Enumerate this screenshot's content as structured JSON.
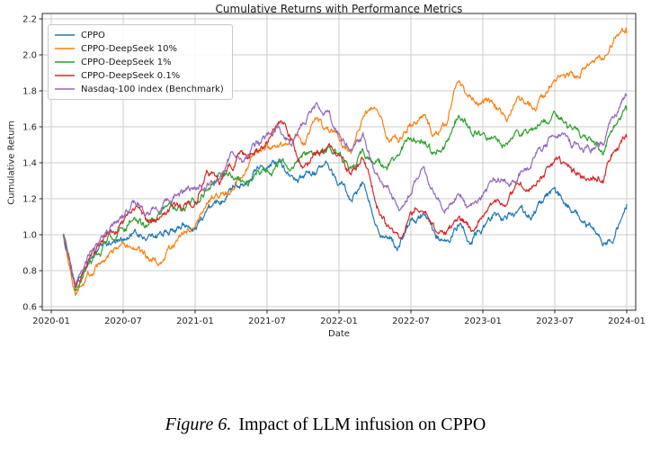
{
  "figure": {
    "caption_label": "Figure 6.",
    "caption_text": "Impact of LLM infusion on CPPO"
  },
  "chart_data": {
    "type": "line",
    "title": "Cumulative Returns with Performance Metrics",
    "xlabel": "Date",
    "ylabel": "Cumulative Return",
    "ylim": [
      0.6,
      2.2
    ],
    "yticks": [
      0.6,
      0.8,
      1.0,
      1.2,
      1.4,
      1.6,
      1.8,
      2.0,
      2.2
    ],
    "xticks": [
      "2020-01",
      "2020-07",
      "2021-01",
      "2021-07",
      "2022-01",
      "2022-07",
      "2023-01",
      "2023-07",
      "2024-01"
    ],
    "grid": true,
    "legend_position": "upper left",
    "x": [
      "2020-02",
      "2020-03",
      "2020-04",
      "2020-05",
      "2020-06",
      "2020-07",
      "2020-08",
      "2020-09",
      "2020-10",
      "2020-11",
      "2020-12",
      "2021-01",
      "2021-02",
      "2021-03",
      "2021-04",
      "2021-05",
      "2021-06",
      "2021-07",
      "2021-08",
      "2021-09",
      "2021-10",
      "2021-11",
      "2021-12",
      "2022-01",
      "2022-02",
      "2022-03",
      "2022-04",
      "2022-05",
      "2022-06",
      "2022-07",
      "2022-08",
      "2022-09",
      "2022-10",
      "2022-11",
      "2022-12",
      "2023-01",
      "2023-02",
      "2023-03",
      "2023-04",
      "2023-05",
      "2023-06",
      "2023-07",
      "2023-08",
      "2023-09",
      "2023-10",
      "2023-11",
      "2023-12",
      "2024-01"
    ],
    "series": [
      {
        "name": "CPPO",
        "color": "#1f77b4",
        "values": [
          1.0,
          0.7,
          0.84,
          0.93,
          0.96,
          0.99,
          1.0,
          0.97,
          1.0,
          1.02,
          1.04,
          1.05,
          1.13,
          1.16,
          1.28,
          1.3,
          1.36,
          1.4,
          1.43,
          1.32,
          1.31,
          1.35,
          1.37,
          1.28,
          1.21,
          1.28,
          1.1,
          0.98,
          0.93,
          1.06,
          1.1,
          0.97,
          0.97,
          1.05,
          0.98,
          1.05,
          1.12,
          1.08,
          1.14,
          1.11,
          1.19,
          1.24,
          1.17,
          1.1,
          1.02,
          0.96,
          1.0,
          1.17
        ]
      },
      {
        "name": "CPPO-DeepSeek 10%",
        "color": "#ff7f0e",
        "values": [
          1.0,
          0.65,
          0.76,
          0.82,
          0.88,
          0.92,
          0.94,
          0.87,
          0.85,
          0.93,
          1.0,
          1.04,
          1.17,
          1.22,
          1.26,
          1.33,
          1.45,
          1.47,
          1.5,
          1.55,
          1.51,
          1.63,
          1.57,
          1.55,
          1.45,
          1.66,
          1.72,
          1.55,
          1.52,
          1.62,
          1.66,
          1.55,
          1.62,
          1.88,
          1.76,
          1.76,
          1.71,
          1.63,
          1.78,
          1.75,
          1.73,
          1.86,
          1.9,
          1.87,
          1.98,
          1.96,
          2.06,
          2.12
        ]
      },
      {
        "name": "CPPO-DeepSeek 1%",
        "color": "#2ca02c",
        "values": [
          1.0,
          0.68,
          0.8,
          0.9,
          0.99,
          1.05,
          1.09,
          1.04,
          1.11,
          1.13,
          1.16,
          1.19,
          1.27,
          1.33,
          1.34,
          1.3,
          1.32,
          1.33,
          1.4,
          1.38,
          1.43,
          1.47,
          1.48,
          1.45,
          1.37,
          1.45,
          1.4,
          1.38,
          1.43,
          1.56,
          1.5,
          1.46,
          1.52,
          1.65,
          1.58,
          1.55,
          1.52,
          1.5,
          1.55,
          1.6,
          1.67,
          1.66,
          1.6,
          1.56,
          1.52,
          1.46,
          1.6,
          1.69
        ]
      },
      {
        "name": "CPPO-DeepSeek 0.1%",
        "color": "#d62728",
        "values": [
          1.0,
          0.7,
          0.84,
          0.94,
          1.02,
          1.07,
          1.14,
          1.07,
          1.09,
          1.15,
          1.17,
          1.19,
          1.35,
          1.28,
          1.38,
          1.43,
          1.46,
          1.5,
          1.63,
          1.52,
          1.38,
          1.44,
          1.48,
          1.46,
          1.33,
          1.43,
          1.21,
          1.05,
          0.97,
          1.12,
          1.17,
          1.04,
          1.03,
          1.1,
          1.03,
          1.1,
          1.19,
          1.21,
          1.28,
          1.26,
          1.34,
          1.4,
          1.36,
          1.34,
          1.32,
          1.3,
          1.47,
          1.54
        ]
      },
      {
        "name": "Nasdaq-100 index (Benchmark)",
        "color": "#9467bd",
        "values": [
          1.0,
          0.72,
          0.86,
          0.95,
          1.04,
          1.09,
          1.17,
          1.13,
          1.16,
          1.21,
          1.24,
          1.26,
          1.28,
          1.3,
          1.44,
          1.42,
          1.5,
          1.55,
          1.6,
          1.54,
          1.61,
          1.72,
          1.69,
          1.57,
          1.48,
          1.55,
          1.35,
          1.25,
          1.14,
          1.25,
          1.39,
          1.2,
          1.14,
          1.22,
          1.15,
          1.22,
          1.3,
          1.29,
          1.33,
          1.4,
          1.5,
          1.56,
          1.52,
          1.5,
          1.47,
          1.49,
          1.65,
          1.77
        ]
      }
    ]
  }
}
